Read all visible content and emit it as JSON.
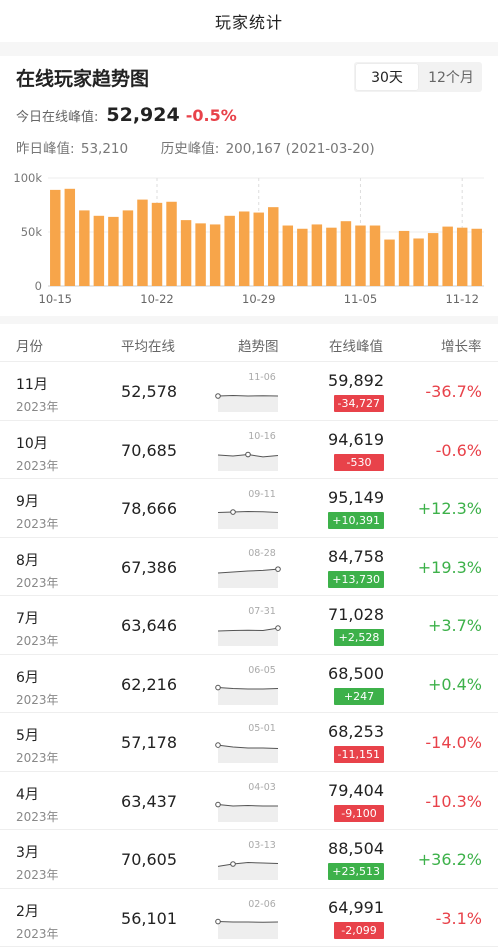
{
  "header": {
    "title": "玩家统计"
  },
  "card": {
    "title": "在线玩家趋势图",
    "range_tabs": [
      {
        "label": "30天",
        "active": true
      },
      {
        "label": "12个月",
        "active": false
      }
    ],
    "today_label": "今日在线峰值:",
    "today_value": "52,924",
    "today_change": "-0.5%",
    "yesterday_label": "昨日峰值:",
    "yesterday_value": "53,210",
    "history_label": "历史峰值:",
    "history_value": "200,167 (2021-03-20)"
  },
  "colors": {
    "bar": "#f7a54a",
    "negative": "#e8424a",
    "positive": "#3db14a"
  },
  "chart_data": {
    "type": "bar",
    "y_ticks": [
      "0",
      "50k",
      "100k"
    ],
    "ylim": [
      0,
      100000
    ],
    "x_tick_labels": [
      "10-15",
      "10-22",
      "10-29",
      "11-05",
      "11-12"
    ],
    "x_tick_indices": [
      0,
      7,
      14,
      21,
      28
    ],
    "dashed_gridlines_at_indices": [
      7,
      14,
      21,
      28
    ],
    "values": [
      89000,
      90000,
      70000,
      65000,
      64000,
      70000,
      80000,
      77000,
      78000,
      61000,
      58000,
      57000,
      65000,
      69000,
      68000,
      73000,
      56000,
      53000,
      57000,
      54000,
      60000,
      56000,
      56000,
      43000,
      51000,
      44000,
      49000,
      55000,
      54000,
      53000
    ]
  },
  "table": {
    "headers": {
      "month": "月份",
      "avg": "平均在线",
      "trend": "趋势图",
      "peak": "在线峰值",
      "growth": "增长率"
    },
    "rows": [
      {
        "month": "11月",
        "year": "2023年",
        "avg": "52,578",
        "spark_label": "11-06",
        "spark": [
          0.5,
          0.52,
          0.5,
          0.51,
          0.5
        ],
        "spark_marker": 0,
        "peak": "59,892",
        "diff": "-34,727",
        "growth": "-36.7%",
        "sign": "neg"
      },
      {
        "month": "10月",
        "year": "2023年",
        "avg": "70,685",
        "spark_label": "10-16",
        "spark": [
          0.5,
          0.46,
          0.52,
          0.42,
          0.48
        ],
        "spark_marker": 2,
        "peak": "94,619",
        "diff": "-530",
        "growth": "-0.6%",
        "sign": "neg"
      },
      {
        "month": "9月",
        "year": "2023年",
        "avg": "78,666",
        "spark_label": "09-11",
        "spark": [
          0.52,
          0.54,
          0.56,
          0.55,
          0.52
        ],
        "spark_marker": 1,
        "peak": "95,149",
        "diff": "+10,391",
        "growth": "+12.3%",
        "sign": "pos"
      },
      {
        "month": "8月",
        "year": "2023年",
        "avg": "67,386",
        "spark_label": "08-28",
        "spark": [
          0.46,
          0.5,
          0.54,
          0.57,
          0.62
        ],
        "spark_marker": 4,
        "peak": "84,758",
        "diff": "+13,730",
        "growth": "+19.3%",
        "sign": "pos"
      },
      {
        "month": "7月",
        "year": "2023年",
        "avg": "63,646",
        "spark_label": "07-31",
        "spark": [
          0.46,
          0.48,
          0.49,
          0.48,
          0.58
        ],
        "spark_marker": 4,
        "peak": "71,028",
        "diff": "+2,528",
        "growth": "+3.7%",
        "sign": "pos"
      },
      {
        "month": "6月",
        "year": "2023年",
        "avg": "62,216",
        "spark_label": "06-05",
        "spark": [
          0.56,
          0.52,
          0.5,
          0.5,
          0.52
        ],
        "spark_marker": 0,
        "peak": "68,500",
        "diff": "+247",
        "growth": "+0.4%",
        "sign": "pos"
      },
      {
        "month": "5月",
        "year": "2023年",
        "avg": "57,178",
        "spark_label": "05-01",
        "spark": [
          0.58,
          0.5,
          0.46,
          0.46,
          0.44
        ],
        "spark_marker": 0,
        "peak": "68,253",
        "diff": "-11,151",
        "growth": "-14.0%",
        "sign": "neg"
      },
      {
        "month": "4月",
        "year": "2023年",
        "avg": "63,437",
        "spark_label": "04-03",
        "spark": [
          0.56,
          0.5,
          0.52,
          0.5,
          0.5
        ],
        "spark_marker": 0,
        "peak": "79,404",
        "diff": "-9,100",
        "growth": "-10.3%",
        "sign": "neg"
      },
      {
        "month": "3月",
        "year": "2023年",
        "avg": "70,605",
        "spark_label": "03-13",
        "spark": [
          0.4,
          0.5,
          0.56,
          0.54,
          0.52
        ],
        "spark_marker": 1,
        "peak": "88,504",
        "diff": "+23,513",
        "growth": "+36.2%",
        "sign": "pos"
      },
      {
        "month": "2月",
        "year": "2023年",
        "avg": "56,101",
        "spark_label": "02-06",
        "spark": [
          0.56,
          0.54,
          0.54,
          0.53,
          0.54
        ],
        "spark_marker": 0,
        "peak": "64,991",
        "diff": "-2,099",
        "growth": "-3.1%",
        "sign": "neg"
      }
    ]
  }
}
